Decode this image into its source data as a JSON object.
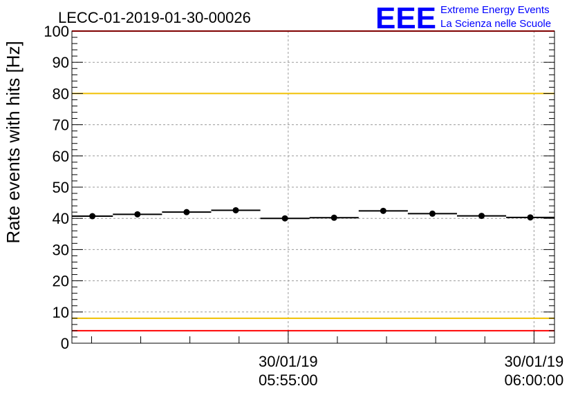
{
  "chart_data": {
    "type": "scatter",
    "title": "LECC-01-2019-01-30-00026",
    "ylabel": "Rate events with hits [Hz]",
    "xlabel": "",
    "ylim": [
      0,
      100
    ],
    "yticks": [
      "0",
      "10",
      "20",
      "30",
      "40",
      "50",
      "60",
      "70",
      "80",
      "90",
      "100"
    ],
    "x_axis": {
      "type": "time",
      "start": "30/01/19 05:50:36",
      "end": "30/01/19 06:00:25",
      "labeled_ticks": [
        {
          "time": "30/01/19 05:55:00",
          "date_label": "30/01/19",
          "time_label": "05:55:00"
        },
        {
          "time": "30/01/19 06:00:00",
          "date_label": "30/01/19",
          "time_label": "06:00:00"
        }
      ]
    },
    "grid": true,
    "series": [
      {
        "color": "#000000",
        "points": [
          {
            "start": "05:50:36",
            "end": "05:51:26",
            "y": 40.7
          },
          {
            "start": "05:51:26",
            "end": "05:52:26",
            "y": 41.3
          },
          {
            "start": "05:52:26",
            "end": "05:53:26",
            "y": 42.0
          },
          {
            "start": "05:53:26",
            "end": "05:54:26",
            "y": 42.6
          },
          {
            "start": "05:54:26",
            "end": "05:55:26",
            "y": 40.0
          },
          {
            "start": "05:55:26",
            "end": "05:56:26",
            "y": 40.2
          },
          {
            "start": "05:56:26",
            "end": "05:57:26",
            "y": 42.4
          },
          {
            "start": "05:57:26",
            "end": "05:58:26",
            "y": 41.5
          },
          {
            "start": "05:58:26",
            "end": "05:59:26",
            "y": 40.8
          },
          {
            "start": "05:59:26",
            "end": "06:00:25",
            "y": 40.3
          }
        ]
      }
    ],
    "reference_lines": [
      {
        "y": 100,
        "color": "#ff0000"
      },
      {
        "y": 80,
        "color": "#f0c000"
      },
      {
        "y": 8,
        "color": "#f0c000"
      },
      {
        "y": 4,
        "color": "#ff0000"
      }
    ]
  },
  "logo": {
    "mark": "EEE",
    "line1": "Extreme Energy Events",
    "line2": "La Scienza nelle Scuole",
    "color": "#0000ff"
  }
}
